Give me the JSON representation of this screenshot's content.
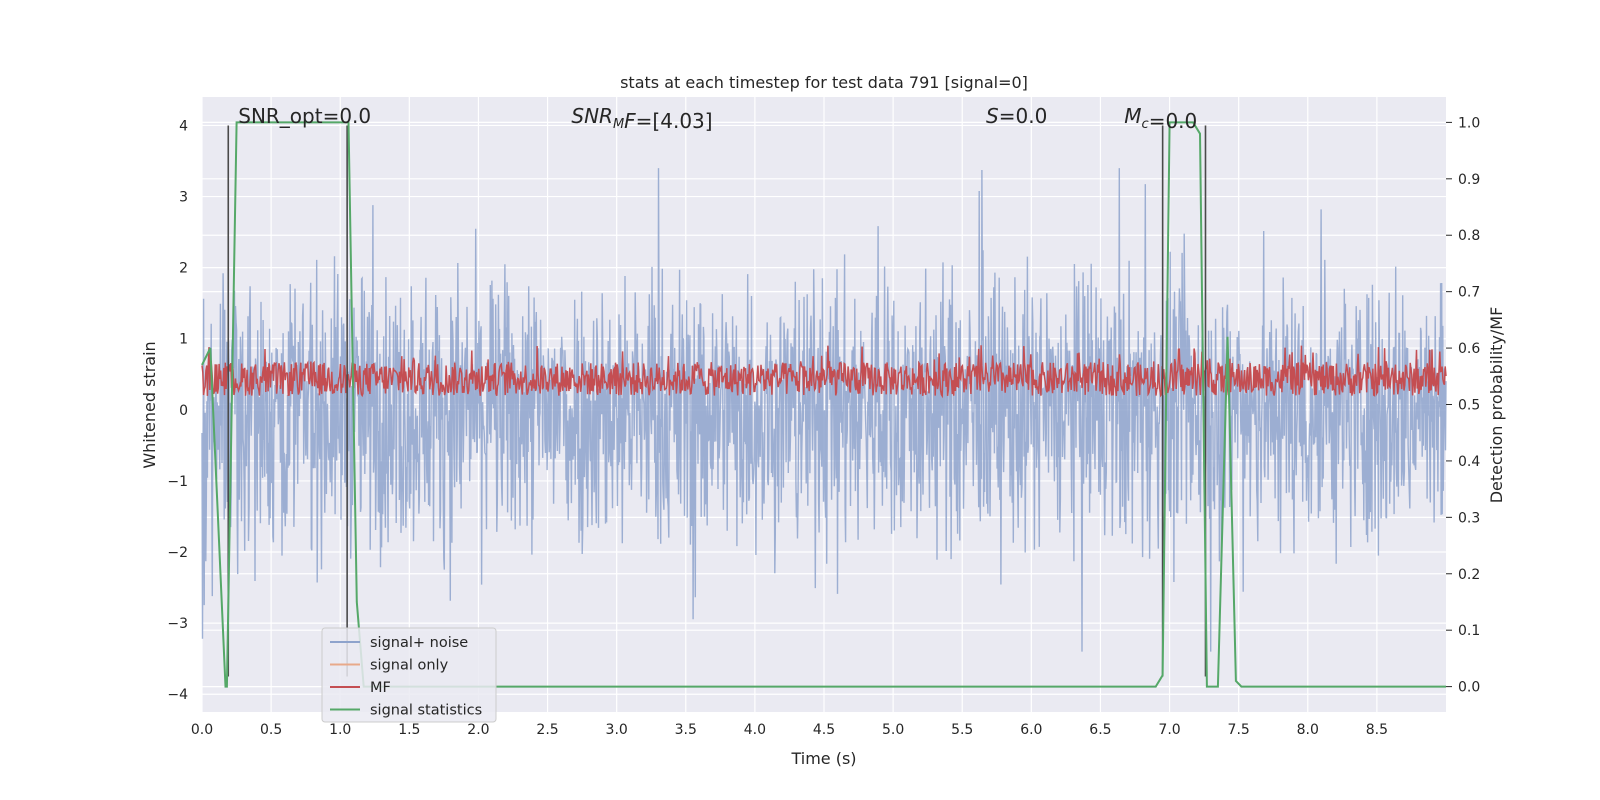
{
  "chart_data": {
    "type": "line",
    "title": "stats at each timestep for test data 791 [signal=0]",
    "xlabel": "Time (s)",
    "ylabel": "Whitened strain",
    "ylabel_right": "Detection probability/MF",
    "xlim": [
      0,
      9.0
    ],
    "ylim": [
      -4.25,
      4.4
    ],
    "ylim_right": [
      -0.045,
      1.045
    ],
    "x_ticks": [
      "0.0",
      "0.5",
      "1.0",
      "1.5",
      "2.0",
      "2.5",
      "3.0",
      "3.5",
      "4.0",
      "4.5",
      "5.0",
      "5.5",
      "6.0",
      "6.5",
      "7.0",
      "7.5",
      "8.0",
      "8.5"
    ],
    "y_ticks_left": [
      "4",
      "3",
      "2",
      "1",
      "0",
      "−1",
      "−2",
      "−3",
      "−4"
    ],
    "y_ticks_right": [
      "1.0",
      "0.9",
      "0.8",
      "0.7",
      "0.6",
      "0.5",
      "0.4",
      "0.3",
      "0.2",
      "0.1",
      "0.0"
    ],
    "grid": true,
    "legend_position": "lower-left",
    "annotations": [
      {
        "text": "SNR_opt=0.0",
        "x_data": 0.19
      },
      {
        "text": "=[4.03]",
        "math": "SNR",
        "sub": "M",
        "tail": "F",
        "x_data": 2.6
      },
      {
        "text": "=0.0",
        "math": "S",
        "x_data": 5.6
      },
      {
        "text": "=0.0",
        "math": "M",
        "sub": "c",
        "x_data": 6.6
      }
    ],
    "series": [
      {
        "name": "signal+ noise",
        "color": "#8ea3cc",
        "style": "noise",
        "amplitude_range": [
          -3.4,
          3.4
        ]
      },
      {
        "name": "signal only",
        "color": "#e8a98a",
        "values": []
      },
      {
        "name": "MF",
        "color": "#c44e52",
        "style": "band",
        "axis": "right",
        "range": [
          0.5,
          0.6
        ]
      },
      {
        "name": "signal statistics",
        "color": "#55a868",
        "axis": "right",
        "x": [
          0.0,
          0.06,
          0.11,
          0.17,
          0.18,
          0.25,
          0.3,
          1.04,
          1.06,
          1.12,
          1.17,
          6.9,
          6.95,
          7.0,
          7.17,
          7.22,
          7.27,
          7.35,
          7.42,
          7.48,
          7.52,
          7.58,
          9.0
        ],
        "y": [
          0.57,
          0.6,
          0.33,
          0.0,
          0.0,
          1.0,
          1.0,
          1.0,
          1.0,
          0.15,
          0.0,
          0.0,
          0.02,
          1.0,
          1.0,
          0.98,
          0.0,
          0.0,
          0.62,
          0.01,
          0.0,
          0.0,
          0.0
        ]
      }
    ],
    "vertical_markers": [
      {
        "x": 0.19,
        "y_top": 4.0,
        "y_bottom": -3.75
      },
      {
        "x": 1.05,
        "y_top": 4.0,
        "y_bottom": -3.75
      },
      {
        "x": 6.95,
        "y_top": 4.0,
        "y_bottom": -3.75
      },
      {
        "x": 7.26,
        "y_top": 4.0,
        "y_bottom": -3.75
      }
    ],
    "marker_color": "#4a4a4a"
  }
}
